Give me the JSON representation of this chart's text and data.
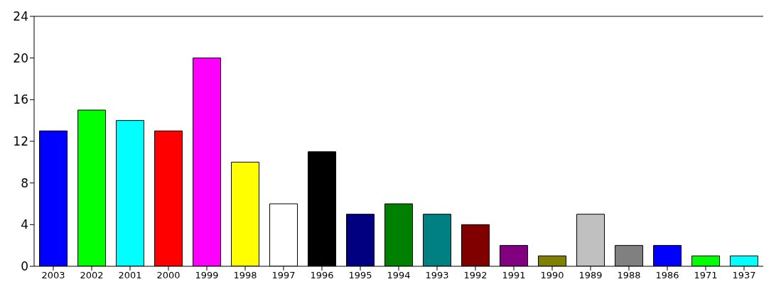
{
  "chart_data": {
    "type": "bar",
    "categories": [
      "2003",
      "2002",
      "2001",
      "2000",
      "1999",
      "1998",
      "1997",
      "1996",
      "1995",
      "1994",
      "1993",
      "1992",
      "1991",
      "1990",
      "1989",
      "1988",
      "1986",
      "1971",
      "1937"
    ],
    "values": [
      13,
      15,
      14,
      13,
      20,
      10,
      6,
      11,
      5,
      6,
      5,
      4,
      2,
      1,
      5,
      2,
      2,
      1,
      1
    ],
    "colors": [
      "#0000ff",
      "#00ff00",
      "#00ffff",
      "#ff0000",
      "#ff00ff",
      "#ffff00",
      "#ffffff",
      "#000000",
      "#000080",
      "#008000",
      "#008080",
      "#800000",
      "#800080",
      "#808000",
      "#c0c0c0",
      "#808080",
      "#0000ff",
      "#00ff00",
      "#00ffff"
    ],
    "ylim": [
      0,
      24
    ],
    "yticks": [
      0,
      4,
      8,
      12,
      16,
      20,
      24
    ],
    "grid": false
  }
}
